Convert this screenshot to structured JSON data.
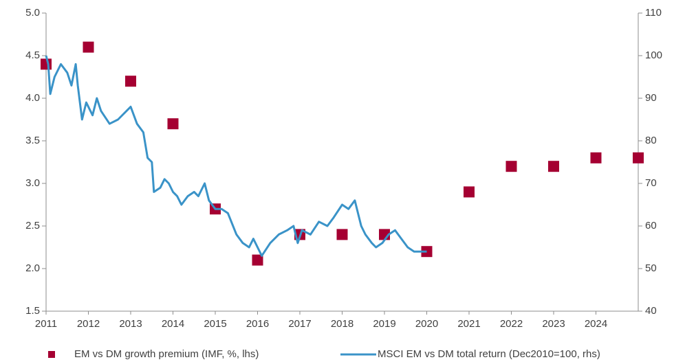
{
  "chart_data": {
    "type": "combo",
    "xlim": [
      2011,
      2025
    ],
    "xticks": [
      2011,
      2012,
      2013,
      2014,
      2015,
      2016,
      2017,
      2018,
      2019,
      2020,
      2021,
      2022,
      2023,
      2024
    ],
    "ylim": [
      1.5,
      5.0
    ],
    "yticks": [
      1.5,
      {
        "value": 2,
        "label": "2.0"
      },
      2.5,
      {
        "value": 3,
        "label": "3.0"
      },
      3.5,
      {
        "value": 4,
        "label": "4.0"
      },
      4.5,
      {
        "value": 5,
        "label": "5.0"
      }
    ],
    "y2lim": [
      40,
      110
    ],
    "y2ticks": [
      40,
      50,
      60,
      70,
      80,
      90,
      100,
      110
    ],
    "legend": "bottom",
    "series": [
      {
        "name": "EM vs DM growth premium (IMF, %, lhs)",
        "type": "scatter",
        "color": "#a50032",
        "x": [
          2011,
          2012,
          2013,
          2014,
          2015,
          2016,
          2017,
          2018,
          2019,
          2020,
          2021,
          2022,
          2023,
          2024,
          2025
        ],
        "values": [
          4.4,
          4.6,
          4.2,
          3.7,
          2.7,
          2.1,
          2.4,
          2.4,
          2.4,
          2.2,
          2.9,
          3.2,
          3.2,
          3.3,
          3.3
        ]
      },
      {
        "name": "MSCI EM vs DM  total return (Dec2010=100, rhs)",
        "type": "line",
        "color": "#3a93c8",
        "axis": "y2",
        "x": [
          2011.0,
          2011.05,
          2011.1,
          2011.2,
          2011.35,
          2011.5,
          2011.6,
          2011.7,
          2011.75,
          2011.85,
          2011.95,
          2012.1,
          2012.2,
          2012.3,
          2012.5,
          2012.7,
          2012.9,
          2013.0,
          2013.15,
          2013.3,
          2013.4,
          2013.5,
          2013.55,
          2013.7,
          2013.8,
          2013.9,
          2014.0,
          2014.1,
          2014.2,
          2014.35,
          2014.5,
          2014.6,
          2014.75,
          2014.85,
          2015.0,
          2015.15,
          2015.3,
          2015.5,
          2015.65,
          2015.8,
          2015.9,
          2016.0,
          2016.1,
          2016.3,
          2016.5,
          2016.7,
          2016.85,
          2016.95,
          2017.05,
          2017.25,
          2017.45,
          2017.65,
          2017.8,
          2018.0,
          2018.15,
          2018.3,
          2018.35,
          2018.45,
          2018.55,
          2018.7,
          2018.8,
          2018.95,
          2019.1,
          2019.25,
          2019.4,
          2019.55,
          2019.7,
          2019.85,
          2020.0
        ],
        "values": [
          100,
          98,
          91,
          95,
          98,
          96,
          93,
          98,
          93,
          85,
          89,
          86,
          90,
          87,
          84,
          85,
          87,
          88,
          84,
          82,
          76,
          75,
          68,
          69,
          71,
          70,
          68,
          67,
          65,
          67,
          68,
          67,
          70,
          66,
          64,
          64,
          63,
          58,
          56,
          55,
          57,
          55,
          53,
          56,
          58,
          59,
          60,
          56,
          59,
          58,
          61,
          60,
          62,
          65,
          64,
          66,
          64,
          60,
          58,
          56,
          55,
          56,
          58,
          59,
          57,
          55,
          54,
          54,
          54
        ]
      }
    ]
  }
}
